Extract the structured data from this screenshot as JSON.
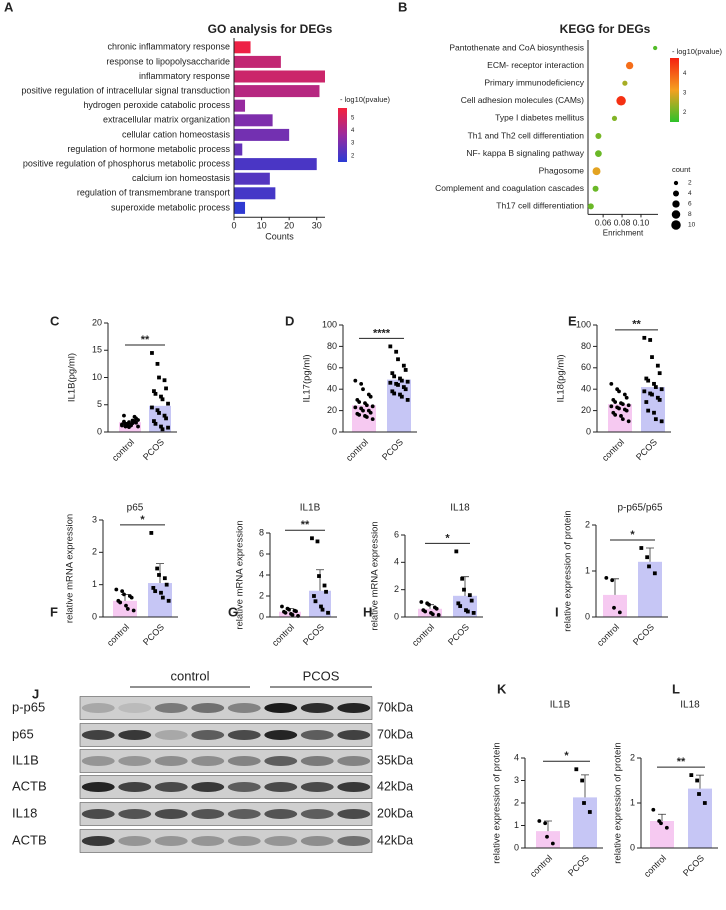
{
  "chart_data": [
    {
      "type": "hbar",
      "panel": "A",
      "title": "GO analysis for DEGs",
      "xlabel": "Counts",
      "categories": [
        "chronic inflammatory response",
        "response to lipopolysaccharide",
        "inflammatory response",
        "positive regulation of intracellular signal transduction",
        "hydrogen peroxide catabolic process",
        "extracellular matrix organization",
        "cellular cation homeostasis",
        "regulation of hormone metabolic process",
        "positive regulation of phosphorus metabolic process",
        "calcium ion homeostasis",
        "regulation of transmembrane transport",
        "superoxide metabolic process"
      ],
      "values": [
        6,
        17,
        33,
        31,
        4,
        14,
        20,
        3,
        30,
        13,
        15,
        4
      ],
      "color_values": [
        5.6,
        4.6,
        4.8,
        4.3,
        3.6,
        3.1,
        2.9,
        2.6,
        2.1,
        2.3,
        2.0,
        1.6
      ],
      "xlim": [
        0,
        33
      ],
      "xticks": [
        0,
        10,
        20,
        30
      ],
      "colorbar_title": "- log10(pvalue)",
      "colormap": [
        "#2b3bd4",
        "#9a2a9e",
        "#f5203c"
      ],
      "clim": [
        1.5,
        5.8
      ],
      "cticks": [
        2,
        3,
        4,
        5
      ]
    },
    {
      "type": "dotplot",
      "panel": "B",
      "title": "KEGG for DEGs",
      "xlabel": "Enrichment",
      "categories": [
        "Pantothenate and CoA biosynthesis",
        "ECM- receptor interaction",
        "Primary immunodeficiency",
        "Cell adhesion molecules (CAMs)",
        "Type I diabetes mellitus",
        "Th1 and Th2 cell differentiation",
        "NF- kappa B signaling pathway",
        "Phagosome",
        "Complement and coagulation cascades",
        "Th17 cell differentiation"
      ],
      "x": [
        0.115,
        0.088,
        0.083,
        0.079,
        0.072,
        0.055,
        0.055,
        0.053,
        0.052,
        0.047
      ],
      "sizes": [
        2,
        6,
        3,
        10,
        3,
        4,
        5,
        7,
        4,
        4
      ],
      "color_values": [
        1.8,
        3.8,
        2.5,
        4.6,
        2.2,
        2.1,
        2.0,
        3.0,
        2.0,
        2.0
      ],
      "xlim": [
        0.044,
        0.118
      ],
      "xticks": [
        {
          "value": 0.06,
          "label": "0.06"
        },
        {
          "value": 0.08,
          "label": "0.08"
        },
        {
          "value": 0.1,
          "label": "0.10"
        }
      ],
      "colorbar_title": "- log10(pvalue)",
      "colormap": [
        "#2ec22a",
        "#f5a020",
        "#f52010"
      ],
      "clim": [
        1.5,
        4.8
      ],
      "cticks": [
        2,
        3,
        4
      ],
      "size_title": "count",
      "size_ticks": [
        2,
        4,
        6,
        8,
        10
      ]
    },
    {
      "type": "dotbar",
      "panel": "C",
      "ylabel": "IL1B(pg/ml)",
      "categories": [
        "control",
        "PCOS"
      ],
      "values": [
        1.8,
        4.8
      ],
      "colors": [
        "#f6c9f1",
        "#c6c6f5"
      ],
      "points": [
        [
          1.2,
          1.5,
          1.8,
          2.0,
          2.5,
          3.0,
          1.0,
          1.3,
          1.6,
          2.2,
          1.4,
          1.1,
          0.9,
          2.8,
          1.7,
          1.9,
          1.5,
          1.2,
          2.1,
          1.0
        ],
        [
          14.5,
          12.5,
          10,
          9.5,
          8,
          7.5,
          7,
          6.5,
          6,
          5.2,
          4.5,
          4,
          3.5,
          3,
          2.5,
          2,
          1.5,
          1,
          0.5,
          0.8
        ]
      ],
      "ylim": [
        0,
        20
      ],
      "yticks": [
        0,
        5,
        10,
        15,
        20
      ],
      "significance": "**"
    },
    {
      "type": "dotbar",
      "panel": "D",
      "ylabel": "IL17(pg/ml)",
      "categories": [
        "control",
        "PCOS"
      ],
      "values": [
        25,
        49
      ],
      "colors": [
        "#f6c9f1",
        "#c6c6f5"
      ],
      "points": [
        [
          48,
          45,
          40,
          35,
          33,
          30,
          28,
          27,
          25,
          24,
          23,
          22,
          20,
          20,
          18,
          17,
          16,
          15,
          14,
          12
        ],
        [
          80,
          75,
          68,
          62,
          58,
          55,
          52,
          50,
          48,
          47,
          46,
          45,
          44,
          42,
          40,
          38,
          36,
          35,
          33,
          30
        ]
      ],
      "ylim": [
        0,
        100
      ],
      "yticks": [
        0,
        20,
        40,
        60,
        80,
        100
      ],
      "significance": "****"
    },
    {
      "type": "dotbar",
      "panel": "E",
      "ylabel": "IL18(pg/ml)",
      "categories": [
        "control",
        "PCOS"
      ],
      "values": [
        26,
        42
      ],
      "colors": [
        "#f6c9f1",
        "#c6c6f5"
      ],
      "points": [
        [
          45,
          40,
          38,
          35,
          32,
          30,
          28,
          27,
          26,
          25,
          24,
          23,
          22,
          21,
          20,
          18,
          16,
          15,
          12,
          10
        ],
        [
          88,
          86,
          70,
          62,
          55,
          50,
          48,
          45,
          42,
          40,
          38,
          36,
          35,
          32,
          30,
          28,
          20,
          18,
          12,
          10
        ]
      ],
      "ylim": [
        0,
        100
      ],
      "yticks": [
        0,
        20,
        40,
        60,
        80,
        100
      ],
      "significance": "**"
    },
    {
      "type": "dotbar",
      "panel": "F",
      "title": "p65",
      "ylabel": "relative mRNA expression",
      "categories": [
        "control",
        "PCOS"
      ],
      "values": [
        0.5,
        1.05
      ],
      "errors": [
        0.2,
        0.6
      ],
      "colors": [
        "#f6c9f1",
        "#c6c6f5"
      ],
      "points": [
        [
          0.85,
          0.8,
          0.7,
          0.65,
          0.6,
          0.5,
          0.45,
          0.35,
          0.25,
          0.2
        ],
        [
          2.6,
          1.5,
          1.3,
          1.2,
          1.0,
          0.9,
          0.8,
          0.75,
          0.6,
          0.5
        ]
      ],
      "ylim": [
        0,
        3
      ],
      "yticks": [
        0,
        1,
        2,
        3
      ],
      "significance": "*"
    },
    {
      "type": "dotbar",
      "panel": "G",
      "title": "IL1B",
      "ylabel": "relative mRNA expression",
      "categories": [
        "control",
        "PCOS"
      ],
      "values": [
        0.5,
        2.5
      ],
      "errors": [
        0.3,
        2.0
      ],
      "colors": [
        "#f6c9f1",
        "#c6c6f5"
      ],
      "points": [
        [
          1.0,
          0.8,
          0.7,
          0.6,
          0.55,
          0.5,
          0.4,
          0.3,
          0.2,
          0.1
        ],
        [
          7.5,
          7.2,
          3.9,
          3.0,
          2.4,
          2.0,
          1.5,
          1.0,
          0.7,
          0.4
        ]
      ],
      "ylim": [
        0,
        8
      ],
      "yticks": [
        0,
        2,
        4,
        6,
        8
      ],
      "significance": "**"
    },
    {
      "type": "dotbar",
      "panel": "H",
      "title": "IL18",
      "ylabel": "relative mRNA expression",
      "categories": [
        "control",
        "PCOS"
      ],
      "values": [
        0.6,
        1.55
      ],
      "errors": [
        0.3,
        1.4
      ],
      "colors": [
        "#f6c9f1",
        "#c6c6f5"
      ],
      "points": [
        [
          1.1,
          1.0,
          0.9,
          0.7,
          0.6,
          0.5,
          0.4,
          0.3,
          0.2,
          0.15
        ],
        [
          4.8,
          2.8,
          2.0,
          1.6,
          1.2,
          1.0,
          0.8,
          0.5,
          0.4,
          0.3
        ]
      ],
      "ylim": [
        0,
        6
      ],
      "yticks": [
        0,
        2,
        4,
        6
      ],
      "significance": "*"
    },
    {
      "type": "dotbar",
      "panel": "I",
      "title": "p-p65/p65",
      "ylabel": "relative expression of protein",
      "categories": [
        "control",
        "PCOS"
      ],
      "values": [
        0.48,
        1.2
      ],
      "errors": [
        0.35,
        0.3
      ],
      "colors": [
        "#f6c9f1",
        "#c6c6f5"
      ],
      "points": [
        [
          0.85,
          0.8,
          0.2,
          0.1
        ],
        [
          1.5,
          1.3,
          1.1,
          0.95
        ]
      ],
      "ylim": [
        0,
        2
      ],
      "yticks": [
        0,
        1,
        2
      ],
      "significance": "*"
    },
    {
      "type": "blot",
      "panel": "J",
      "groups": [
        "control",
        "PCOS"
      ],
      "rows": [
        {
          "label": "p-p65",
          "size": "70kDa",
          "intensity": [
            0.2,
            0.1,
            0.45,
            0.5,
            0.4,
            0.95,
            0.85,
            0.9
          ]
        },
        {
          "label": "p65",
          "size": "70kDa",
          "intensity": [
            0.75,
            0.8,
            0.2,
            0.6,
            0.7,
            0.9,
            0.6,
            0.75
          ]
        },
        {
          "label": "IL1B",
          "size": "35kDa",
          "intensity": [
            0.3,
            0.3,
            0.35,
            0.35,
            0.4,
            0.6,
            0.45,
            0.4
          ]
        },
        {
          "label": "ACTB",
          "size": "42kDa",
          "intensity": [
            0.9,
            0.75,
            0.7,
            0.8,
            0.6,
            0.7,
            0.7,
            0.8
          ]
        },
        {
          "label": "IL18",
          "size": "20kDa",
          "intensity": [
            0.7,
            0.65,
            0.7,
            0.65,
            0.6,
            0.65,
            0.6,
            0.7
          ]
        },
        {
          "label": "ACTB",
          "size": "42kDa",
          "intensity": [
            0.8,
            0.3,
            0.3,
            0.3,
            0.3,
            0.3,
            0.35,
            0.5
          ]
        }
      ]
    },
    {
      "type": "dotbar",
      "panel": "K",
      "title": "IL1B",
      "ylabel": "relative expression of protein",
      "categories": [
        "control",
        "PCOS"
      ],
      "values": [
        0.75,
        2.25
      ],
      "errors": [
        0.45,
        1.0
      ],
      "colors": [
        "#f6c9f1",
        "#c6c6f5"
      ],
      "points": [
        [
          1.2,
          1.1,
          0.5,
          0.2
        ],
        [
          3.5,
          3.0,
          2.0,
          1.6
        ]
      ],
      "ylim": [
        0,
        4
      ],
      "yticks": [
        0,
        1,
        2,
        3,
        4
      ],
      "significance": "*"
    },
    {
      "type": "dotbar",
      "panel": "L",
      "title": "IL18",
      "ylabel": "relative expression of protein",
      "categories": [
        "control",
        "PCOS"
      ],
      "values": [
        0.6,
        1.32
      ],
      "errors": [
        0.15,
        0.3
      ],
      "colors": [
        "#f6c9f1",
        "#c6c6f5"
      ],
      "points": [
        [
          0.85,
          0.6,
          0.55,
          0.45
        ],
        [
          1.62,
          1.5,
          1.2,
          1.0
        ]
      ],
      "ylim": [
        0,
        2
      ],
      "yticks": [
        0,
        1,
        2
      ],
      "significance": "**"
    }
  ]
}
